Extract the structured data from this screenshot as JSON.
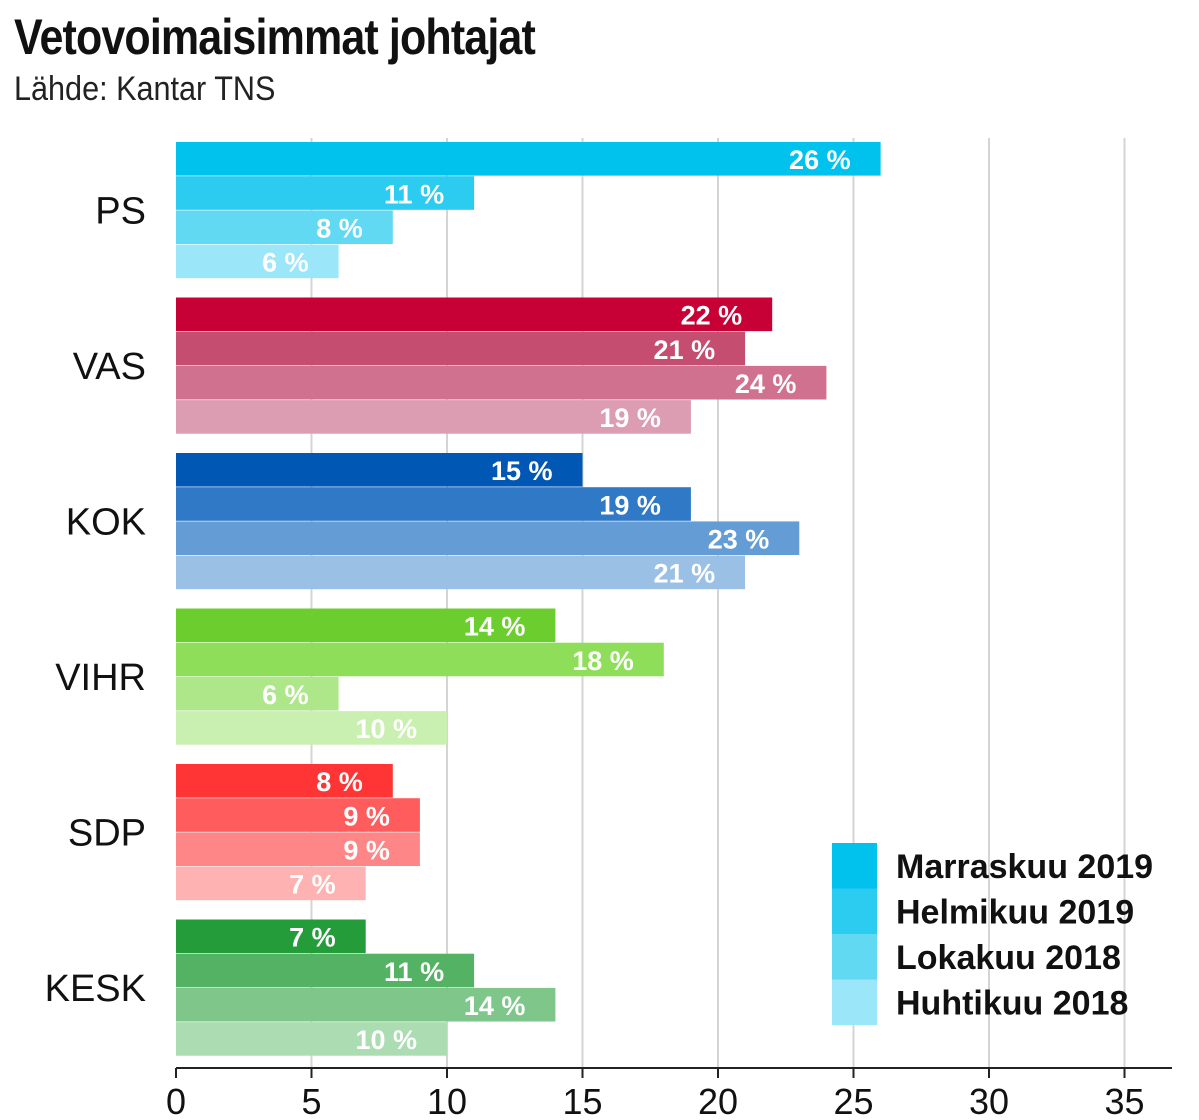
{
  "title": "Vetovoimaisimmat johtajat",
  "subtitle": "Lähde: Kantar TNS",
  "chart_data": {
    "type": "bar",
    "orientation": "horizontal",
    "title": "Vetovoimaisimmat johtajat",
    "source": "Lähde: Kantar TNS",
    "categories": [
      "PS",
      "VAS",
      "KOK",
      "VIHR",
      "SDP",
      "KESK"
    ],
    "series": [
      {
        "name": "Marraskuu 2019",
        "values": [
          26,
          22,
          15,
          14,
          8,
          7
        ]
      },
      {
        "name": "Helmikuu 2019",
        "values": [
          11,
          21,
          19,
          18,
          9,
          11
        ]
      },
      {
        "name": "Lokakuu 2018",
        "values": [
          8,
          24,
          23,
          6,
          9,
          14
        ]
      },
      {
        "name": "Huhtikuu 2018",
        "values": [
          6,
          19,
          21,
          10,
          7,
          10
        ]
      }
    ],
    "value_suffix": " %",
    "xlim": [
      0,
      36
    ],
    "xticks": [
      0,
      5,
      10,
      15,
      20,
      25,
      30,
      35
    ],
    "xtick_labels": [
      "0",
      "5",
      "10",
      "15",
      "20",
      "25",
      "30",
      "35"
    ],
    "grid": true,
    "legend_position": "bottom-right",
    "category_colors": {
      "PS": [
        "#00c2ec",
        "#2ccbf0",
        "#62d9f3",
        "#9be6f8"
      ],
      "VAS": [
        "#c70035",
        "#c44d70",
        "#d0718f",
        "#dc9cb1"
      ],
      "KOK": [
        "#0057b4",
        "#3079c6",
        "#649dd6",
        "#9bc0e6"
      ],
      "VIHR": [
        "#6ccd2e",
        "#8ede59",
        "#aee68a",
        "#c9f0b1"
      ],
      "SDP": [
        "#ff3434",
        "#ff5d5d",
        "#ff8686",
        "#ffb2b2"
      ],
      "KESK": [
        "#259c3a",
        "#53b263",
        "#7ec689",
        "#acdcb2"
      ]
    },
    "legend_colors": [
      "#00c2ec",
      "#2ccbf0",
      "#62d9f3",
      "#9be6f8"
    ]
  }
}
